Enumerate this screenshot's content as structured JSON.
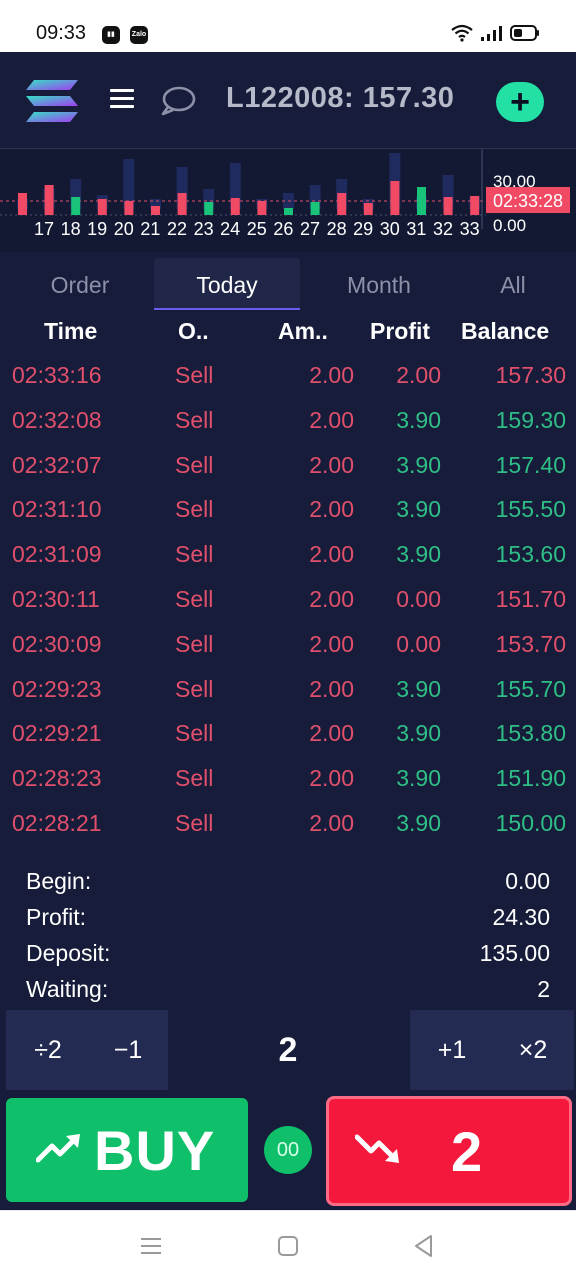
{
  "status_bar": {
    "time": "09:33",
    "zalo_label": "Zalo"
  },
  "header": {
    "account_label": "L122008:",
    "balance": "157.30",
    "add_label": "+"
  },
  "chart_data": {
    "type": "bar",
    "x_tick_labels": [
      "17",
      "18",
      "19",
      "20",
      "21",
      "22",
      "23",
      "24",
      "25",
      "26",
      "27",
      "28",
      "29",
      "30",
      "31",
      "32",
      "33"
    ],
    "y_tick_labels": [
      "30.00",
      "0.00"
    ],
    "current_label": "02:33:28",
    "candles": [
      {
        "c": "red",
        "h": 22
      },
      {
        "c": "red",
        "h": 30
      },
      {
        "c": "green",
        "h": 18
      },
      {
        "c": "red",
        "h": 16
      },
      {
        "c": "red",
        "h": 14
      },
      {
        "c": "red",
        "h": 9
      },
      {
        "c": "red",
        "h": 22
      },
      {
        "c": "green",
        "h": 13
      },
      {
        "c": "red",
        "h": 17
      },
      {
        "c": "red",
        "h": 14
      },
      {
        "c": "green",
        "h": 7
      },
      {
        "c": "green",
        "h": 13
      },
      {
        "c": "red",
        "h": 22
      },
      {
        "c": "red",
        "h": 12
      },
      {
        "c": "red",
        "h": 34
      },
      {
        "c": "green",
        "h": 28
      },
      {
        "c": "red",
        "h": 18
      },
      {
        "c": "red",
        "h": 19
      }
    ],
    "volumes": [
      10,
      20,
      30,
      14,
      50,
      10,
      42,
      20,
      46,
      10,
      16,
      24,
      30,
      10,
      56,
      12,
      34,
      12
    ]
  },
  "tabs": [
    {
      "label": "Order"
    },
    {
      "label": "Today"
    },
    {
      "label": "Month"
    },
    {
      "label": "All"
    }
  ],
  "table": {
    "headers": [
      "Time",
      "O..",
      "Am..",
      "Profit",
      "Balance"
    ],
    "rows": [
      {
        "time": "02:33:16",
        "op": "Sell",
        "amount": "2.00",
        "profit": "2.00",
        "profit_color": "red",
        "balance": "157.30",
        "balance_color": "red"
      },
      {
        "time": "02:32:08",
        "op": "Sell",
        "amount": "2.00",
        "profit": "3.90",
        "profit_color": "green",
        "balance": "159.30",
        "balance_color": "green"
      },
      {
        "time": "02:32:07",
        "op": "Sell",
        "amount": "2.00",
        "profit": "3.90",
        "profit_color": "green",
        "balance": "157.40",
        "balance_color": "green"
      },
      {
        "time": "02:31:10",
        "op": "Sell",
        "amount": "2.00",
        "profit": "3.90",
        "profit_color": "green",
        "balance": "155.50",
        "balance_color": "green"
      },
      {
        "time": "02:31:09",
        "op": "Sell",
        "amount": "2.00",
        "profit": "3.90",
        "profit_color": "green",
        "balance": "153.60",
        "balance_color": "green"
      },
      {
        "time": "02:30:11",
        "op": "Sell",
        "amount": "2.00",
        "profit": "0.00",
        "profit_color": "red",
        "balance": "151.70",
        "balance_color": "red"
      },
      {
        "time": "02:30:09",
        "op": "Sell",
        "amount": "2.00",
        "profit": "0.00",
        "profit_color": "red",
        "balance": "153.70",
        "balance_color": "red"
      },
      {
        "time": "02:29:23",
        "op": "Sell",
        "amount": "2.00",
        "profit": "3.90",
        "profit_color": "green",
        "balance": "155.70",
        "balance_color": "green"
      },
      {
        "time": "02:29:21",
        "op": "Sell",
        "amount": "2.00",
        "profit": "3.90",
        "profit_color": "green",
        "balance": "153.80",
        "balance_color": "green"
      },
      {
        "time": "02:28:23",
        "op": "Sell",
        "amount": "2.00",
        "profit": "3.90",
        "profit_color": "green",
        "balance": "151.90",
        "balance_color": "green"
      },
      {
        "time": "02:28:21",
        "op": "Sell",
        "amount": "2.00",
        "profit": "3.90",
        "profit_color": "green",
        "balance": "150.00",
        "balance_color": "green"
      }
    ]
  },
  "summary": [
    {
      "label": "Begin:",
      "value": "0.00"
    },
    {
      "label": "Profit:",
      "value": "24.30"
    },
    {
      "label": "Deposit:",
      "value": "135.00"
    },
    {
      "label": "Waiting:",
      "value": "2"
    }
  ],
  "amount_controls": {
    "divide": "÷2",
    "minus": "−1",
    "current": "2",
    "plus": "+1",
    "multiply": "×2"
  },
  "buy": {
    "label": "BUY"
  },
  "timer": {
    "label": "00"
  },
  "sell": {
    "label": "2"
  },
  "colors": {
    "green": "#0fbf6a",
    "red": "#f4193c",
    "bg": "#161c39"
  }
}
